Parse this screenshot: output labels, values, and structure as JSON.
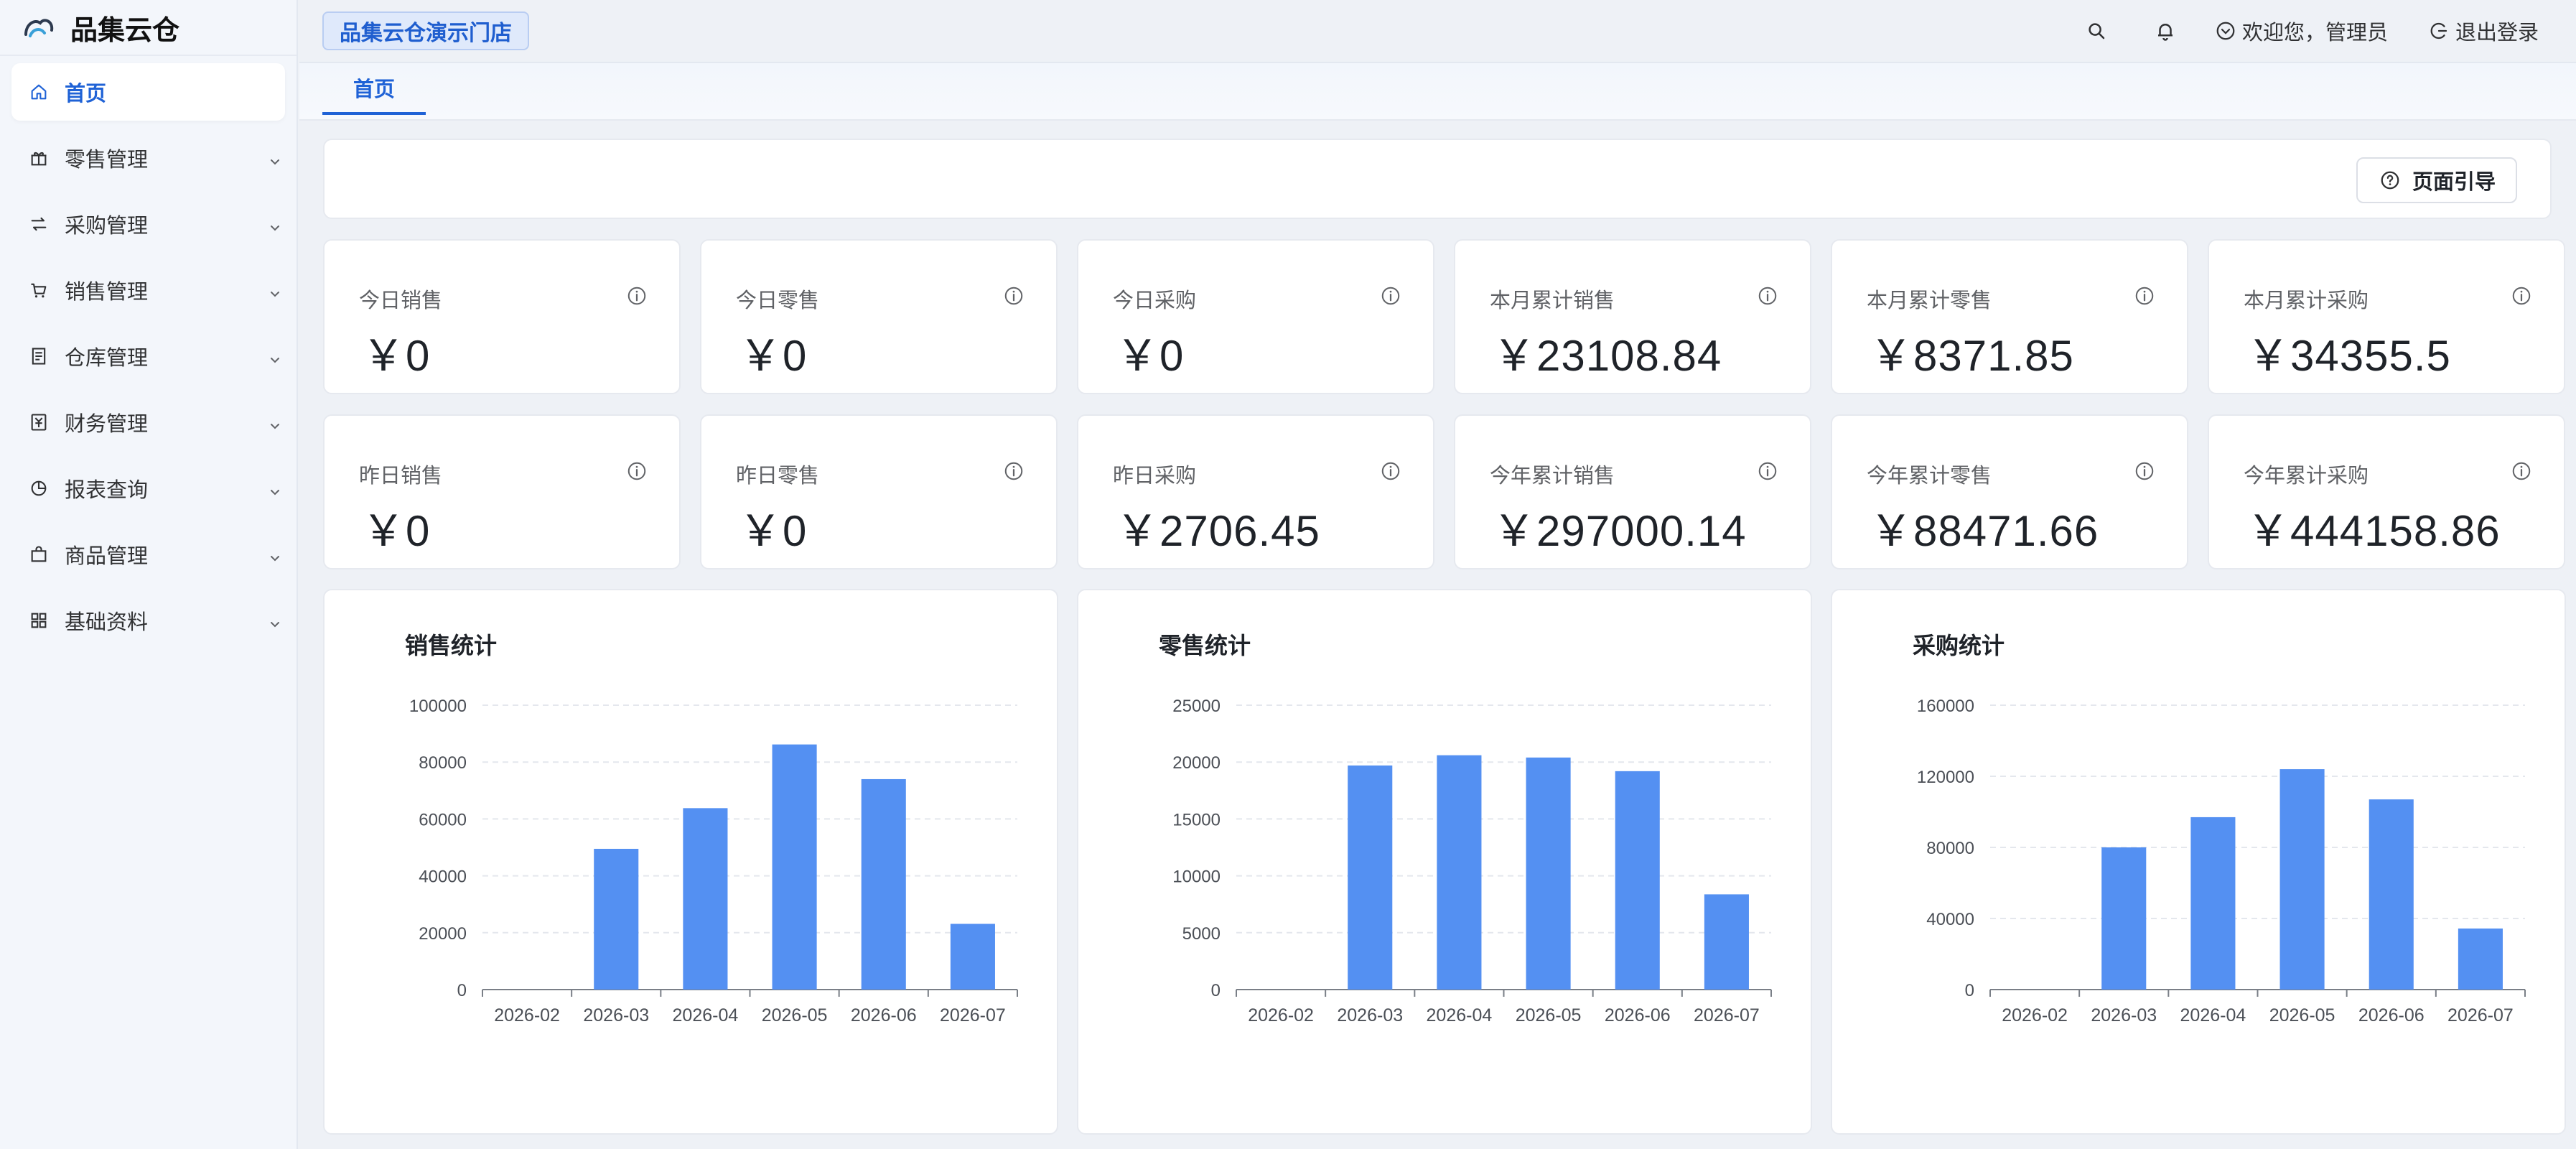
{
  "app": {
    "brand": "品集云仓"
  },
  "header": {
    "store": "品集云仓演示门店",
    "welcome": "欢迎您，管理员",
    "logout": "退出登录"
  },
  "sidebar": {
    "items": [
      {
        "label": "首页",
        "icon": "home-icon"
      },
      {
        "label": "零售管理",
        "icon": "gift-icon"
      },
      {
        "label": "采购管理",
        "icon": "swap-icon"
      },
      {
        "label": "销售管理",
        "icon": "cart-icon"
      },
      {
        "label": "仓库管理",
        "icon": "warehouse-icon"
      },
      {
        "label": "财务管理",
        "icon": "finance-icon"
      },
      {
        "label": "报表查询",
        "icon": "pie-icon"
      },
      {
        "label": "商品管理",
        "icon": "bag-icon"
      },
      {
        "label": "基础资料",
        "icon": "grid-icon"
      }
    ]
  },
  "tabs": {
    "home": "首页"
  },
  "guide": {
    "label": "页面引导"
  },
  "stats": [
    {
      "label": "今日销售",
      "value": "￥0"
    },
    {
      "label": "今日零售",
      "value": "￥0"
    },
    {
      "label": "今日采购",
      "value": "￥0"
    },
    {
      "label": "本月累计销售",
      "value": "￥23108.84"
    },
    {
      "label": "本月累计零售",
      "value": "￥8371.85"
    },
    {
      "label": "本月累计采购",
      "value": "￥34355.5"
    },
    {
      "label": "昨日销售",
      "value": "￥0"
    },
    {
      "label": "昨日零售",
      "value": "￥0"
    },
    {
      "label": "昨日采购",
      "value": "￥2706.45"
    },
    {
      "label": "今年累计销售",
      "value": "￥297000.14"
    },
    {
      "label": "今年累计零售",
      "value": "￥88471.66"
    },
    {
      "label": "今年累计采购",
      "value": "￥444158.86"
    }
  ],
  "colors": {
    "accent": "#1f62d6",
    "bar": "#5490f2"
  },
  "chart_data": [
    {
      "type": "bar",
      "title": "销售统计",
      "categories": [
        "2026-02",
        "2026-03",
        "2026-04",
        "2026-05",
        "2026-06",
        "2026-07"
      ],
      "values": [
        0,
        49500,
        63800,
        86200,
        74000,
        23108.84
      ],
      "yticks": [
        "0",
        "20000",
        "40000",
        "60000",
        "80000",
        "100000"
      ],
      "ylim": [
        0,
        100000
      ],
      "grid": true
    },
    {
      "type": "bar",
      "title": "零售统计",
      "categories": [
        "2026-02",
        "2026-03",
        "2026-04",
        "2026-05",
        "2026-06",
        "2026-07"
      ],
      "values": [
        0,
        19700,
        20600,
        20400,
        19200,
        8371.85
      ],
      "yticks": [
        "0",
        "5000",
        "10000",
        "15000",
        "20000",
        "25000"
      ],
      "ylim": [
        0,
        25000
      ],
      "grid": true
    },
    {
      "type": "bar",
      "title": "采购统计",
      "categories": [
        "2026-02",
        "2026-03",
        "2026-04",
        "2026-05",
        "2026-06",
        "2026-07"
      ],
      "values": [
        0,
        80000,
        97000,
        124000,
        107000,
        34355.5
      ],
      "yticks": [
        "0",
        "40000",
        "80000",
        "120000",
        "160000"
      ],
      "ylim": [
        0,
        160000
      ],
      "grid": true
    }
  ]
}
